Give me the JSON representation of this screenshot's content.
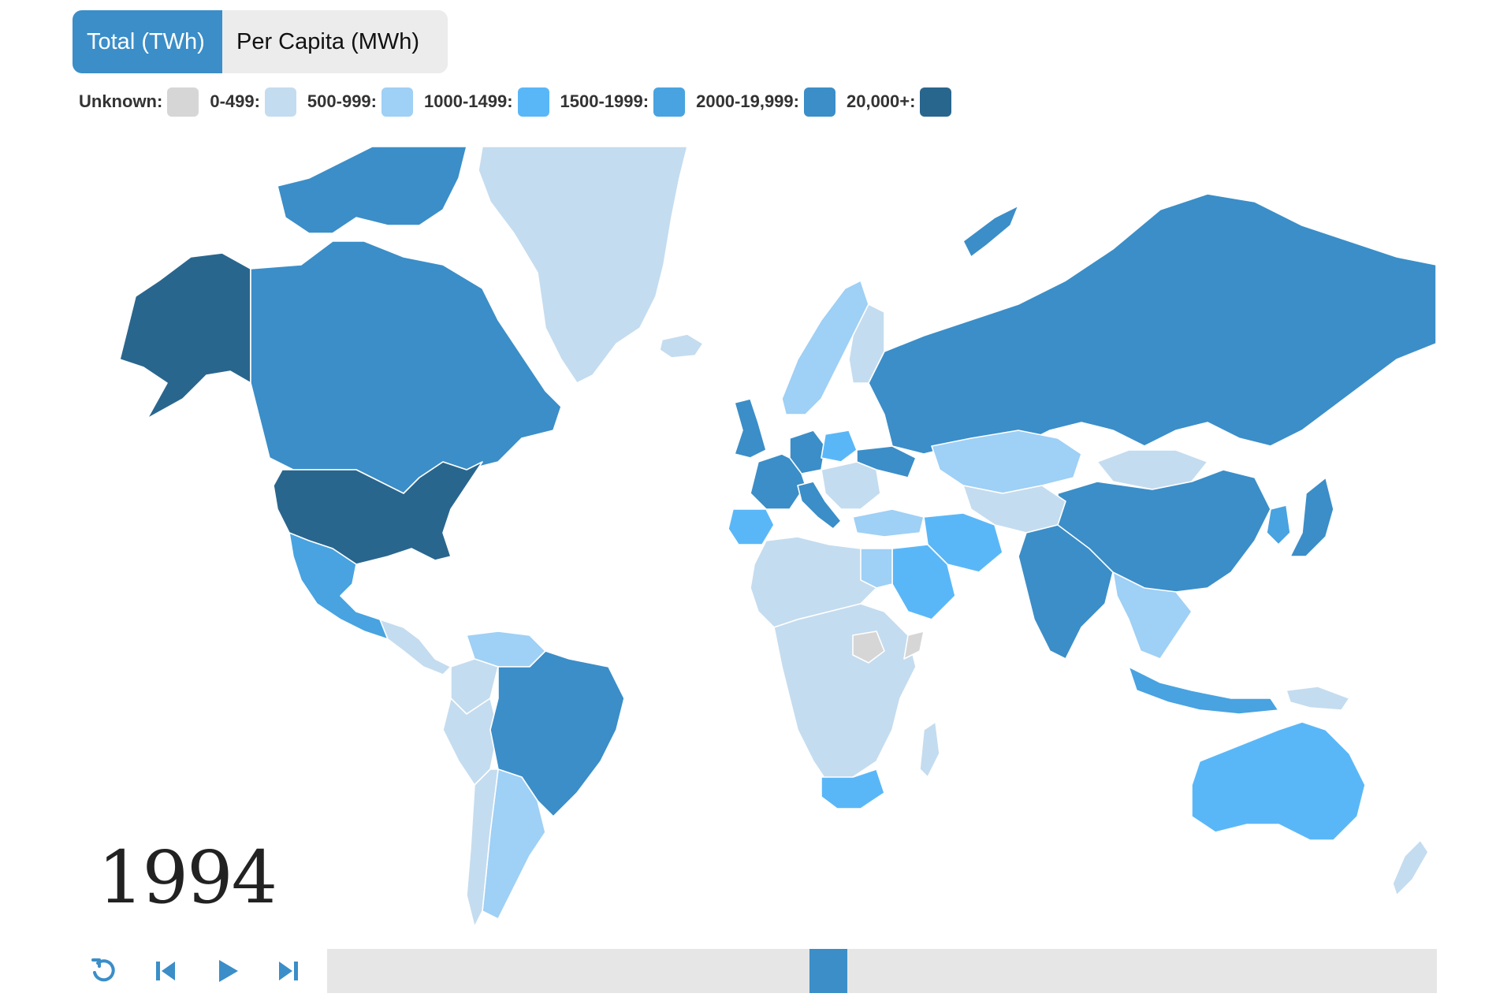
{
  "tabs": {
    "total_label": "Total (TWh)",
    "per_capita_label": "Per Capita (MWh)"
  },
  "legend": {
    "items": [
      {
        "label": "Unknown:",
        "color": "#d6d6d6"
      },
      {
        "label": "0-499:",
        "color": "#c4dcef"
      },
      {
        "label": "500-999:",
        "color": "#9fd0f5"
      },
      {
        "label": "1000-1499:",
        "color": "#5ab7f7"
      },
      {
        "label": "1500-1999:",
        "color": "#48a3e0"
      },
      {
        "label": "2000-19,999:",
        "color": "#3b8ec8"
      },
      {
        "label": "20,000+:",
        "color": "#29668e"
      }
    ]
  },
  "map": {
    "year": "1994",
    "regions": [
      {
        "name": "greenland",
        "category": "0-499:"
      },
      {
        "name": "alaska",
        "category": "20,000+:"
      },
      {
        "name": "canada",
        "category": "2000-19,999:"
      },
      {
        "name": "usa",
        "category": "20,000+:"
      },
      {
        "name": "mexico",
        "category": "1500-1999:"
      },
      {
        "name": "central-america",
        "category": "0-499:"
      },
      {
        "name": "venezuela",
        "category": "500-999:"
      },
      {
        "name": "colombia",
        "category": "0-499:"
      },
      {
        "name": "peru",
        "category": "0-499:"
      },
      {
        "name": "brazil",
        "category": "2000-19,999:"
      },
      {
        "name": "argentina",
        "category": "500-999:"
      },
      {
        "name": "chile",
        "category": "0-499:"
      },
      {
        "name": "iceland",
        "category": "0-499:"
      },
      {
        "name": "uk",
        "category": "2000-19,999:"
      },
      {
        "name": "norway-sweden",
        "category": "500-999:"
      },
      {
        "name": "finland",
        "category": "0-499:"
      },
      {
        "name": "france",
        "category": "2000-19,999:"
      },
      {
        "name": "spain",
        "category": "1000-1499:"
      },
      {
        "name": "germany",
        "category": "2000-19,999:"
      },
      {
        "name": "poland",
        "category": "1000-1499:"
      },
      {
        "name": "italy",
        "category": "2000-19,999:"
      },
      {
        "name": "eastern-europe",
        "category": "0-499:"
      },
      {
        "name": "ukraine",
        "category": "2000-19,999:"
      },
      {
        "name": "turkey",
        "category": "500-999:"
      },
      {
        "name": "russia",
        "category": "2000-19,999:"
      },
      {
        "name": "kazakhstan",
        "category": "500-999:"
      },
      {
        "name": "mongolia",
        "category": "0-499:"
      },
      {
        "name": "china",
        "category": "2000-19,999:"
      },
      {
        "name": "japan",
        "category": "2000-19,999:"
      },
      {
        "name": "korea",
        "category": "1500-1999:"
      },
      {
        "name": "central-asia",
        "category": "0-499:"
      },
      {
        "name": "iran",
        "category": "1000-1499:"
      },
      {
        "name": "saudi-arabia",
        "category": "1000-1499:"
      },
      {
        "name": "india",
        "category": "2000-19,999:"
      },
      {
        "name": "southeast-asia",
        "category": "500-999:"
      },
      {
        "name": "indonesia",
        "category": "1500-1999:"
      },
      {
        "name": "papua-new-guinea",
        "category": "0-499:"
      },
      {
        "name": "australia",
        "category": "1000-1499:"
      },
      {
        "name": "new-zealand",
        "category": "0-499:"
      },
      {
        "name": "north-africa",
        "category": "0-499:"
      },
      {
        "name": "egypt",
        "category": "500-999:"
      },
      {
        "name": "south-sudan",
        "category": "Unknown:"
      },
      {
        "name": "somalia",
        "category": "Unknown:"
      },
      {
        "name": "central-africa",
        "category": "0-499:"
      },
      {
        "name": "south-africa",
        "category": "1000-1499:"
      },
      {
        "name": "madagascar",
        "category": "0-499:"
      }
    ]
  },
  "timeline": {
    "position_fraction": 0.45
  },
  "controls": {
    "reset_icon": "reset-icon",
    "step_back_icon": "step-back-icon",
    "play_icon": "play-icon",
    "step_forward_icon": "step-forward-icon",
    "accent_color": "#3b8ec8"
  }
}
